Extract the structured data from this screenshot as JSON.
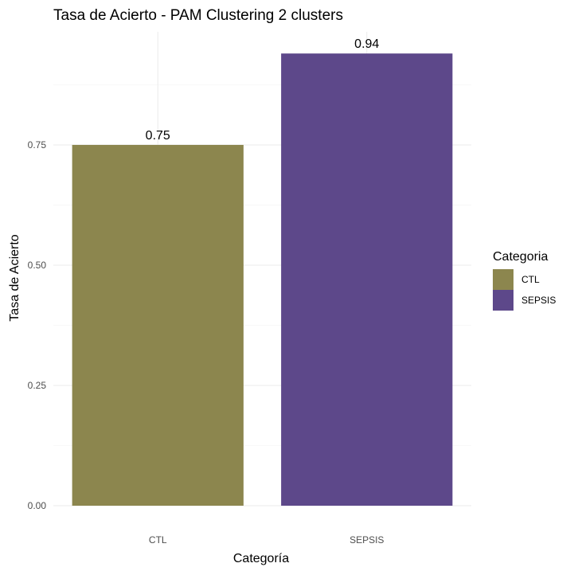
{
  "chart_data": {
    "type": "bar",
    "title": "Tasa de Acierto - PAM Clustering 2 clusters",
    "xlabel": "Categoría",
    "ylabel": "Tasa de Acierto",
    "categories": [
      "CTL",
      "SEPSIS"
    ],
    "values": [
      0.75,
      0.94
    ],
    "value_labels": [
      "0.75",
      "0.94"
    ],
    "colors": [
      "#8c864e",
      "#5d488a"
    ],
    "ylim": [
      0,
      0.985
    ],
    "yticks": [
      0,
      0.25,
      0.5,
      0.75
    ],
    "ytick_labels": [
      "0.00",
      "0.25",
      "0.50",
      "0.75"
    ],
    "grid": true,
    "legend": {
      "title": "Categoria",
      "placement": "right",
      "entries": [
        "CTL",
        "SEPSIS"
      ]
    }
  }
}
